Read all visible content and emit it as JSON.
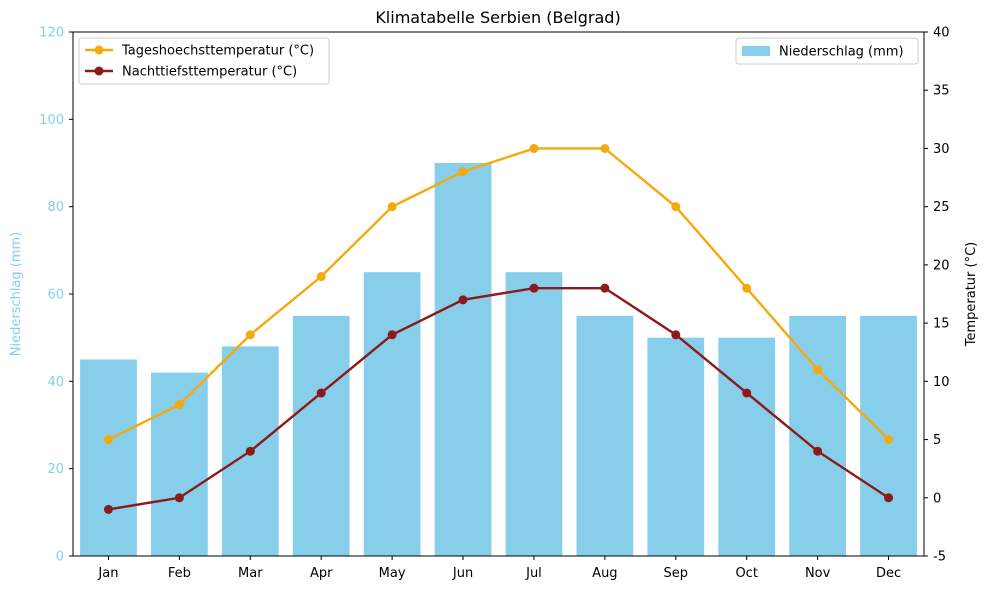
{
  "chart_data": {
    "type": "bar",
    "title": "Klimatabelle Serbien (Belgrad)",
    "categories": [
      "Jan",
      "Feb",
      "Mar",
      "Apr",
      "May",
      "Jun",
      "Jul",
      "Aug",
      "Sep",
      "Oct",
      "Nov",
      "Dec"
    ],
    "bar_series": {
      "name": "Niederschlag (mm)",
      "values": [
        45,
        42,
        48,
        55,
        65,
        90,
        65,
        55,
        50,
        50,
        55,
        55
      ],
      "color": "#87ceeb"
    },
    "line_series": [
      {
        "name": "Tageshoechsttemperatur (°C)",
        "values": [
          5,
          8,
          14,
          19,
          25,
          28,
          30,
          30,
          25,
          18,
          11,
          5
        ],
        "color": "#f4a90c"
      },
      {
        "name": "Nachttiefsttemperatur (°C)",
        "values": [
          -1,
          0,
          4,
          9,
          14,
          17,
          18,
          18,
          14,
          9,
          4,
          0
        ],
        "color": "#8b1a1a"
      }
    ],
    "y_left": {
      "label": "Niederschlag (mm)",
      "range": [
        0,
        120
      ],
      "ticks": [
        0,
        20,
        40,
        60,
        80,
        100,
        120
      ],
      "color": "#87ceeb"
    },
    "y_right": {
      "label": "Temperatur (°C)",
      "range": [
        -5,
        40
      ],
      "ticks": [
        -5,
        0,
        5,
        10,
        15,
        20,
        25,
        30,
        35,
        40
      ],
      "color": "#000000"
    },
    "grid": false,
    "legend_lines_position": "top-left",
    "legend_bars_position": "top-right"
  }
}
